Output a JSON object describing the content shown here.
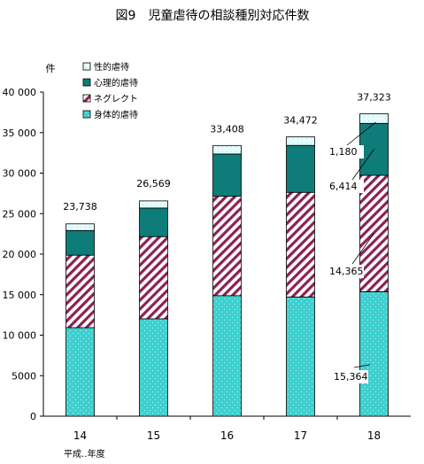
{
  "chart_data": {
    "type": "bar",
    "stacked": true,
    "title": "図9　児童虐待の相談種別対応件数",
    "ylabel": "件",
    "xlabel": "平成‥年度",
    "ylim": [
      0,
      40000
    ],
    "yticks": [
      "0",
      "5000",
      "10 000",
      "15 000",
      "20 000",
      "25 000",
      "30 000",
      "35 000",
      "40 000"
    ],
    "ytick_values": [
      0,
      5000,
      10000,
      15000,
      20000,
      25000,
      30000,
      35000,
      40000
    ],
    "categories": [
      "14",
      "15",
      "16",
      "17",
      "18"
    ],
    "series": [
      {
        "name": "身体的虐待",
        "color": "#3fcfcf",
        "values": [
          10932,
          12022,
          14881,
          14712,
          15364
        ]
      },
      {
        "name": "ネグレクト",
        "color": "#8b2252",
        "values": [
          8940,
          10140,
          12263,
          12911,
          14365
        ]
      },
      {
        "name": "心理的虐待",
        "color": "#0e7c78",
        "values": [
          3046,
          3531,
          5216,
          5797,
          6414
        ]
      },
      {
        "name": "性的虐待",
        "color": "#e6fbfb",
        "values": [
          820,
          876,
          1048,
          1052,
          1180
        ]
      }
    ],
    "totals": [
      "23,738",
      "26,569",
      "33,408",
      "34,472",
      "37,323"
    ],
    "legend_order": [
      "性的虐待",
      "心理的虐待",
      "ネグレクト",
      "身体的虐待"
    ],
    "annotations": [
      "1,180",
      "6,414",
      "14,365",
      "15,364"
    ],
    "grid": false,
    "legend_position": "top-left"
  }
}
